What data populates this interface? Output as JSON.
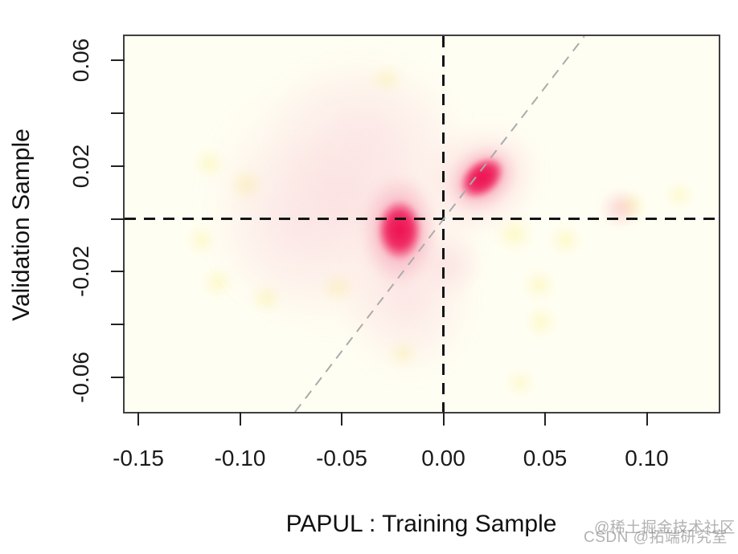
{
  "chart_data": {
    "type": "heatmap",
    "subtype": "2d-kernel-density-smooth-scatter",
    "title": "",
    "xlabel": "PAPUL : Training Sample",
    "ylabel": "Validation Sample",
    "x_range": [
      -0.15673,
      0.13537
    ],
    "y_range": [
      -0.0731,
      0.0692
    ],
    "grid": false,
    "legend": "none",
    "x_ticks": {
      "values": [
        -0.15,
        -0.1,
        -0.05,
        0.0,
        0.05,
        0.1
      ],
      "labels": [
        "-0.15",
        "-0.10",
        "-0.05",
        "0.00",
        "0.05",
        "0.10"
      ]
    },
    "y_ticks": {
      "values": [
        0.06,
        0.04,
        0.02,
        0.0,
        -0.02,
        -0.04,
        -0.06
      ],
      "labels": [
        "0.06",
        "",
        "0.02",
        "",
        "-0.02",
        "",
        "-0.06"
      ]
    },
    "reference_lines": [
      {
        "id": "vline-x0",
        "type": "vline",
        "x": 0,
        "color": "#141414",
        "dash": "dashed"
      },
      {
        "id": "hline-y0",
        "type": "hline",
        "y": 0,
        "color": "#141414",
        "dash": "dashed"
      },
      {
        "id": "identity-line",
        "type": "identity",
        "color": "#ABABAB",
        "dash": "dashed"
      }
    ],
    "density_peaks": [
      {
        "x": -0.0215,
        "y": -0.004,
        "intensity": "high"
      },
      {
        "x": 0.019,
        "y": 0.0155,
        "intensity": "high"
      }
    ],
    "palette": {
      "background": "#FFFEF3",
      "low": "#FCF8D8",
      "mid": "#F8C9D6",
      "high": "#ED1050"
    },
    "blobs": [
      {
        "name": "cloud-main",
        "cx": -0.048,
        "cy": 0.007,
        "rx": 0.07,
        "ry": 0.052,
        "rot": 0,
        "blur": 14,
        "gradient": "rgba(246,175,195,0.30) 0%, rgba(248,200,214,0.18) 55%, rgba(250,220,230,0) 100%"
      },
      {
        "name": "cloud-upper",
        "cx": -0.038,
        "cy": 0.032,
        "rx": 0.05,
        "ry": 0.033,
        "rot": 0,
        "blur": 12,
        "gradient": "rgba(247,190,207,0.22) 0%, rgba(249,210,222,0) 100%"
      },
      {
        "name": "cloud-left",
        "cx": -0.075,
        "cy": -0.002,
        "rx": 0.04,
        "ry": 0.035,
        "rot": 0,
        "blur": 12,
        "gradient": "rgba(247,195,210,0.20) 0%, rgba(249,210,222,0) 100%"
      },
      {
        "name": "cloud-tail-lower",
        "cx": -0.017,
        "cy": -0.031,
        "rx": 0.033,
        "ry": 0.03,
        "rot": 0,
        "blur": 12,
        "gradient": "rgba(245,175,196,0.28) 0%, rgba(248,205,218,0) 100%"
      },
      {
        "name": "wisp-below-center",
        "cx": 0.004,
        "cy": -0.017,
        "rx": 0.016,
        "ry": 0.013,
        "rot": 0,
        "blur": 8,
        "gradient": "rgba(246,185,202,0.30) 0%, rgba(248,205,218,0) 100%"
      },
      {
        "name": "peak2-halo-outer",
        "cx": 0.019,
        "cy": 0.015,
        "rx": 0.03,
        "ry": 0.02,
        "rot": -35,
        "blur": 10,
        "gradient": "rgba(245,150,175,0.35) 0%, rgba(248,200,214,0) 100%"
      },
      {
        "name": "peak1-halo",
        "cx": -0.0215,
        "cy": -0.0045,
        "rx": 0.019,
        "ry": 0.021,
        "rot": 0,
        "blur": 6,
        "gradient": "rgba(241,80,122,0.72) 0%, rgba(245,130,160,0.38) 55%, rgba(248,190,208,0) 100%"
      },
      {
        "name": "peak1-core",
        "cx": -0.0215,
        "cy": -0.0042,
        "rx": 0.011,
        "ry": 0.0115,
        "rot": 0,
        "blur": 3,
        "gradient": "#ED1050 0%, rgba(238,26,88,0.85) 55%, rgba(242,90,130,0) 100%"
      },
      {
        "name": "peak2-halo",
        "cx": 0.019,
        "cy": 0.0155,
        "rx": 0.019,
        "ry": 0.0115,
        "rot": -40,
        "blur": 6,
        "gradient": "rgba(241,80,122,0.70) 0%, rgba(245,130,160,0.35) 55%, rgba(248,190,208,0) 100%"
      },
      {
        "name": "peak2-core",
        "cx": 0.019,
        "cy": 0.0155,
        "rx": 0.0125,
        "ry": 0.0065,
        "rot": -40,
        "blur": 3,
        "gradient": "#ED1050 0%, rgba(238,26,88,0.85) 55%, rgba(242,90,130,0) 100%"
      },
      {
        "name": "spot-right-pink",
        "cx": 0.087,
        "cy": 0.004,
        "rx": 0.01,
        "ry": 0.0075,
        "rot": 0,
        "blur": 5,
        "gradient": "rgba(244,150,175,0.40) 0%, rgba(247,190,208,0) 100%"
      }
    ],
    "yellow_spots": [
      {
        "cx": -0.115,
        "cy": 0.021,
        "rx": 0.008,
        "ry": 0.006
      },
      {
        "cx": -0.097,
        "cy": 0.013,
        "rx": 0.009,
        "ry": 0.007
      },
      {
        "cx": -0.119,
        "cy": -0.008,
        "rx": 0.007,
        "ry": 0.006
      },
      {
        "cx": -0.111,
        "cy": -0.024,
        "rx": 0.008,
        "ry": 0.006
      },
      {
        "cx": -0.087,
        "cy": -0.03,
        "rx": 0.008,
        "ry": 0.006
      },
      {
        "cx": -0.052,
        "cy": -0.026,
        "rx": 0.009,
        "ry": 0.006
      },
      {
        "cx": -0.028,
        "cy": 0.053,
        "rx": 0.009,
        "ry": 0.005
      },
      {
        "cx": -0.02,
        "cy": -0.051,
        "rx": 0.008,
        "ry": 0.005
      },
      {
        "cx": 0.035,
        "cy": -0.006,
        "rx": 0.01,
        "ry": 0.007
      },
      {
        "cx": 0.06,
        "cy": -0.008,
        "rx": 0.008,
        "ry": 0.006
      },
      {
        "cx": 0.047,
        "cy": -0.025,
        "rx": 0.008,
        "ry": 0.006
      },
      {
        "cx": 0.048,
        "cy": -0.039,
        "rx": 0.008,
        "ry": 0.006
      },
      {
        "cx": 0.038,
        "cy": -0.062,
        "rx": 0.007,
        "ry": 0.005
      },
      {
        "cx": 0.092,
        "cy": 0.005,
        "rx": 0.008,
        "ry": 0.006
      },
      {
        "cx": 0.116,
        "cy": 0.009,
        "rx": 0.007,
        "ry": 0.005
      }
    ]
  },
  "watermark": {
    "line1": "@稀土掘金技术社区",
    "line2": "CSDN @拓端研究室"
  }
}
